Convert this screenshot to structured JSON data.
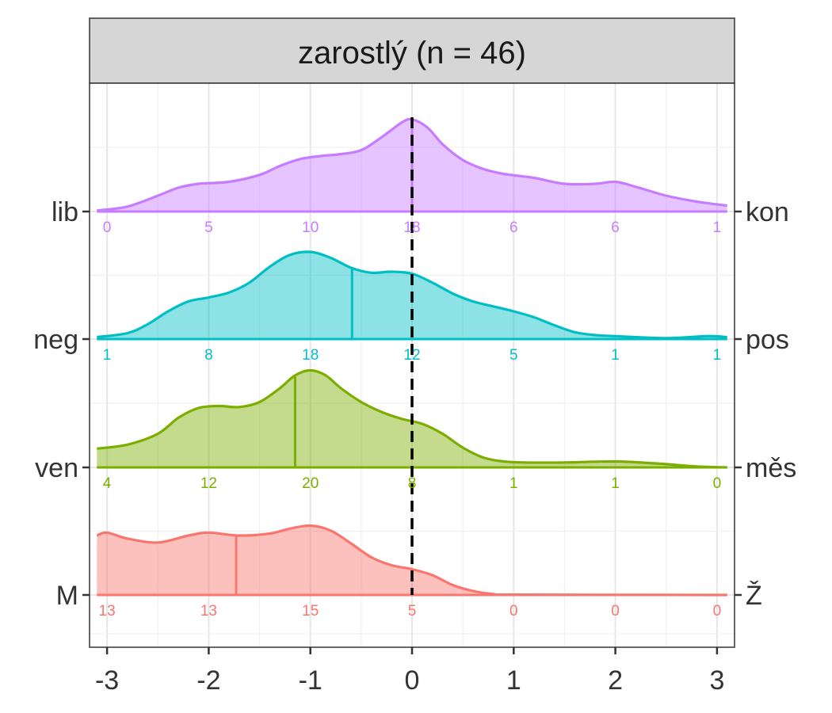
{
  "chart_data": {
    "type": "ridgeline",
    "panel_title": "zarostlý (n = 46)",
    "x_ticks": [
      -3,
      -2,
      -1,
      0,
      1,
      2,
      3
    ],
    "x_tick_labels": [
      "-3",
      "-2",
      "-1",
      "0",
      "1",
      "2",
      "3"
    ],
    "xlim": [
      -3.15,
      3.15
    ],
    "grid": true,
    "reference_line_x": 0,
    "count_positions": [
      -3,
      -2,
      -1,
      0,
      1,
      2,
      3
    ],
    "series": [
      {
        "left_label": "M",
        "right_label": "Ž",
        "color": "#F8766D",
        "fill": "#F8766D",
        "mean": -1.73,
        "counts": [
          "13",
          "13",
          "15",
          "5",
          "0",
          "0",
          "0"
        ],
        "density": [
          [
            -3.1,
            0.6
          ],
          [
            -3.0,
            0.63
          ],
          [
            -2.8,
            0.57
          ],
          [
            -2.5,
            0.53
          ],
          [
            -2.2,
            0.6
          ],
          [
            -2.0,
            0.63
          ],
          [
            -1.7,
            0.6
          ],
          [
            -1.4,
            0.62
          ],
          [
            -1.2,
            0.67
          ],
          [
            -1.0,
            0.7
          ],
          [
            -0.8,
            0.65
          ],
          [
            -0.6,
            0.52
          ],
          [
            -0.4,
            0.38
          ],
          [
            -0.2,
            0.3
          ],
          [
            0.0,
            0.26
          ],
          [
            0.2,
            0.2
          ],
          [
            0.4,
            0.1
          ],
          [
            0.6,
            0.04
          ],
          [
            0.8,
            0.01
          ],
          [
            1.0,
            0.003
          ],
          [
            3.1,
            0.0
          ]
        ]
      },
      {
        "left_label": "ven",
        "right_label": "měs",
        "color": "#7CAE00",
        "fill": "#7CAE00",
        "mean": -1.15,
        "counts": [
          "4",
          "12",
          "20",
          "8",
          "1",
          "1",
          "0"
        ],
        "density": [
          [
            -3.1,
            0.19
          ],
          [
            -2.8,
            0.23
          ],
          [
            -2.5,
            0.34
          ],
          [
            -2.3,
            0.5
          ],
          [
            -2.1,
            0.6
          ],
          [
            -1.9,
            0.62
          ],
          [
            -1.7,
            0.61
          ],
          [
            -1.5,
            0.66
          ],
          [
            -1.3,
            0.8
          ],
          [
            -1.15,
            0.93
          ],
          [
            -1.0,
            0.98
          ],
          [
            -0.85,
            0.93
          ],
          [
            -0.7,
            0.8
          ],
          [
            -0.5,
            0.66
          ],
          [
            -0.3,
            0.56
          ],
          [
            -0.1,
            0.49
          ],
          [
            0.1,
            0.44
          ],
          [
            0.3,
            0.34
          ],
          [
            0.5,
            0.2
          ],
          [
            0.7,
            0.1
          ],
          [
            0.9,
            0.06
          ],
          [
            1.1,
            0.05
          ],
          [
            1.5,
            0.05
          ],
          [
            2.0,
            0.06
          ],
          [
            2.4,
            0.04
          ],
          [
            2.8,
            0.01
          ],
          [
            3.1,
            0.0
          ]
        ]
      },
      {
        "left_label": "neg",
        "right_label": "pos",
        "color": "#00BFC4",
        "fill": "#00BFC4",
        "mean": -0.59,
        "counts": [
          "1",
          "8",
          "18",
          "12",
          "5",
          "1",
          "1"
        ],
        "density": [
          [
            -3.1,
            0.02
          ],
          [
            -2.8,
            0.06
          ],
          [
            -2.6,
            0.15
          ],
          [
            -2.4,
            0.28
          ],
          [
            -2.2,
            0.38
          ],
          [
            -2.0,
            0.42
          ],
          [
            -1.8,
            0.47
          ],
          [
            -1.6,
            0.57
          ],
          [
            -1.4,
            0.73
          ],
          [
            -1.2,
            0.85
          ],
          [
            -1.0,
            0.88
          ],
          [
            -0.8,
            0.82
          ],
          [
            -0.6,
            0.72
          ],
          [
            -0.4,
            0.67
          ],
          [
            -0.2,
            0.68
          ],
          [
            0.0,
            0.66
          ],
          [
            0.2,
            0.57
          ],
          [
            0.4,
            0.46
          ],
          [
            0.6,
            0.38
          ],
          [
            0.8,
            0.33
          ],
          [
            1.0,
            0.28
          ],
          [
            1.2,
            0.22
          ],
          [
            1.4,
            0.14
          ],
          [
            1.6,
            0.07
          ],
          [
            1.8,
            0.04
          ],
          [
            2.0,
            0.03
          ],
          [
            2.5,
            0.01
          ],
          [
            2.9,
            0.03
          ],
          [
            3.1,
            0.02
          ]
        ]
      },
      {
        "left_label": "lib",
        "right_label": "kon",
        "color": "#C77CFF",
        "fill": "#C77CFF",
        "mean": 0.0,
        "counts": [
          "0",
          "5",
          "10",
          "18",
          "6",
          "6",
          "1"
        ],
        "density": [
          [
            -3.1,
            0.01
          ],
          [
            -2.8,
            0.05
          ],
          [
            -2.5,
            0.16
          ],
          [
            -2.3,
            0.24
          ],
          [
            -2.1,
            0.28
          ],
          [
            -1.8,
            0.3
          ],
          [
            -1.5,
            0.37
          ],
          [
            -1.3,
            0.46
          ],
          [
            -1.1,
            0.53
          ],
          [
            -0.9,
            0.56
          ],
          [
            -0.7,
            0.58
          ],
          [
            -0.5,
            0.62
          ],
          [
            -0.3,
            0.75
          ],
          [
            -0.1,
            0.9
          ],
          [
            0.0,
            0.93
          ],
          [
            0.15,
            0.85
          ],
          [
            0.3,
            0.68
          ],
          [
            0.5,
            0.52
          ],
          [
            0.7,
            0.43
          ],
          [
            0.9,
            0.38
          ],
          [
            1.2,
            0.34
          ],
          [
            1.5,
            0.28
          ],
          [
            1.8,
            0.28
          ],
          [
            2.0,
            0.3
          ],
          [
            2.2,
            0.25
          ],
          [
            2.5,
            0.16
          ],
          [
            2.8,
            0.1
          ],
          [
            3.1,
            0.06
          ]
        ]
      }
    ]
  }
}
